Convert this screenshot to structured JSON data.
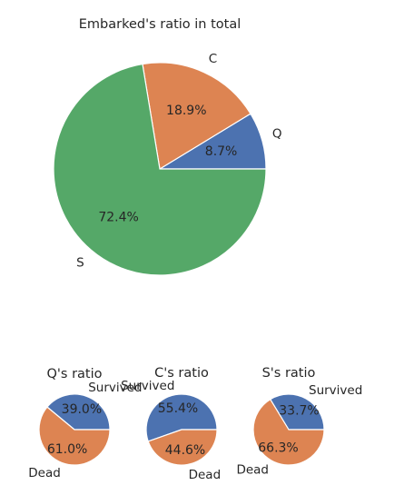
{
  "chart_data": [
    {
      "type": "pie",
      "title": "Embarked's ratio in total",
      "slices": [
        {
          "label": "Q",
          "value": 8.7,
          "value_label": "8.7%",
          "color": "#4c72b0"
        },
        {
          "label": "C",
          "value": 18.9,
          "value_label": "18.9%",
          "color": "#dd8452"
        },
        {
          "label": "S",
          "value": 72.4,
          "value_label": "72.4%",
          "color": "#55a868"
        }
      ]
    },
    {
      "type": "pie",
      "title": "Q's ratio",
      "slices": [
        {
          "label": "Survived",
          "value": 39.0,
          "value_label": "39.0%",
          "color": "#4c72b0"
        },
        {
          "label": "Dead",
          "value": 61.0,
          "value_label": "61.0%",
          "color": "#dd8452"
        }
      ]
    },
    {
      "type": "pie",
      "title": "C's ratio",
      "slices": [
        {
          "label": "Survived",
          "value": 55.4,
          "value_label": "55.4%",
          "color": "#4c72b0"
        },
        {
          "label": "Dead",
          "value": 44.6,
          "value_label": "44.6%",
          "color": "#dd8452"
        }
      ]
    },
    {
      "type": "pie",
      "title": "S's ratio",
      "slices": [
        {
          "label": "Survived",
          "value": 33.7,
          "value_label": "33.7%",
          "color": "#4c72b0"
        },
        {
          "label": "Dead",
          "value": 66.3,
          "value_label": "66.3%",
          "color": "#dd8452"
        }
      ]
    }
  ]
}
